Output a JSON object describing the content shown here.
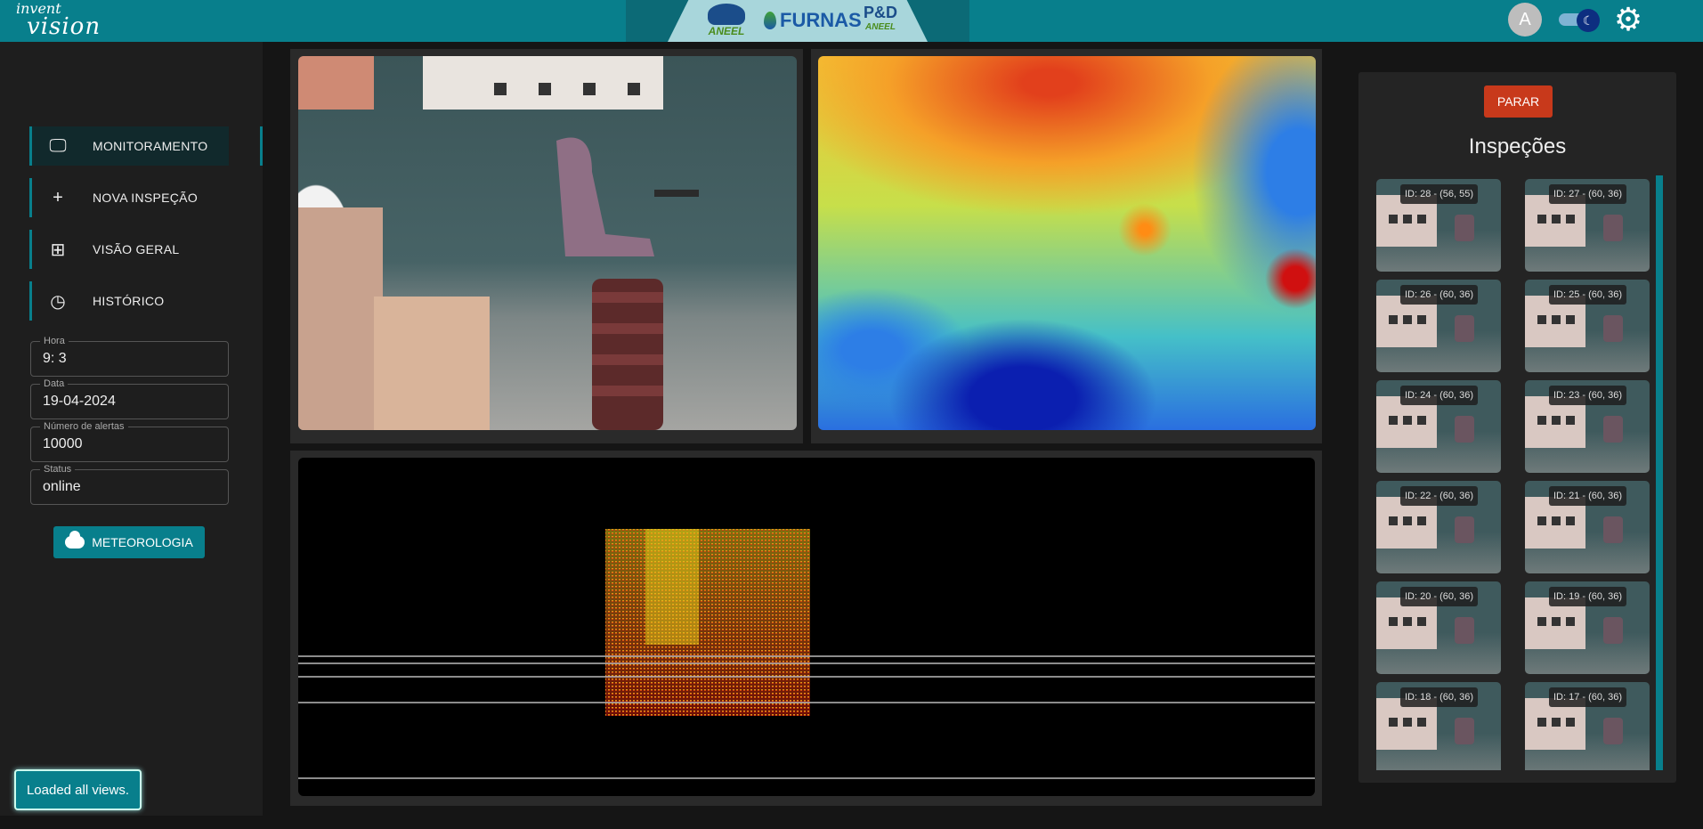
{
  "header": {
    "logo_line1": "invent",
    "logo_line2": "vision",
    "partners": [
      "ANEEL",
      "FURNAS",
      "P&D ANEEL"
    ],
    "avatar_initial": "A"
  },
  "sidebar": {
    "items": [
      {
        "label": "MONITORAMENTO",
        "icon": "monitor-icon",
        "active": true
      },
      {
        "label": "NOVA INSPEÇÃO",
        "icon": "plus-icon",
        "active": false
      },
      {
        "label": "VISÃO GERAL",
        "icon": "grid-icon",
        "active": false
      },
      {
        "label": "HISTÓRICO",
        "icon": "clock-icon",
        "active": false
      }
    ],
    "fields": [
      {
        "label": "Hora",
        "value": "9: 3"
      },
      {
        "label": "Data",
        "value": "19-04-2024"
      },
      {
        "label": "Número de alertas",
        "value": "10000"
      },
      {
        "label": "Status",
        "value": "online"
      }
    ],
    "meteo_label": "METEOROLOGIA"
  },
  "toast": "Loaded all views.",
  "inspections": {
    "stop_label": "PARAR",
    "title": "Inspeções",
    "items": [
      "ID: 28 - (56, 55)",
      "ID: 27 - (60, 36)",
      "ID: 26 - (60, 36)",
      "ID: 25 - (60, 36)",
      "ID: 24 - (60, 36)",
      "ID: 23 - (60, 36)",
      "ID: 22 - (60, 36)",
      "ID: 21 - (60, 36)",
      "ID: 20 - (60, 36)",
      "ID: 19 - (60, 36)",
      "ID: 18 - (60, 36)",
      "ID: 17 - (60, 36)"
    ]
  },
  "colors": {
    "accent": "#087f8c",
    "stop": "#c8391b"
  }
}
